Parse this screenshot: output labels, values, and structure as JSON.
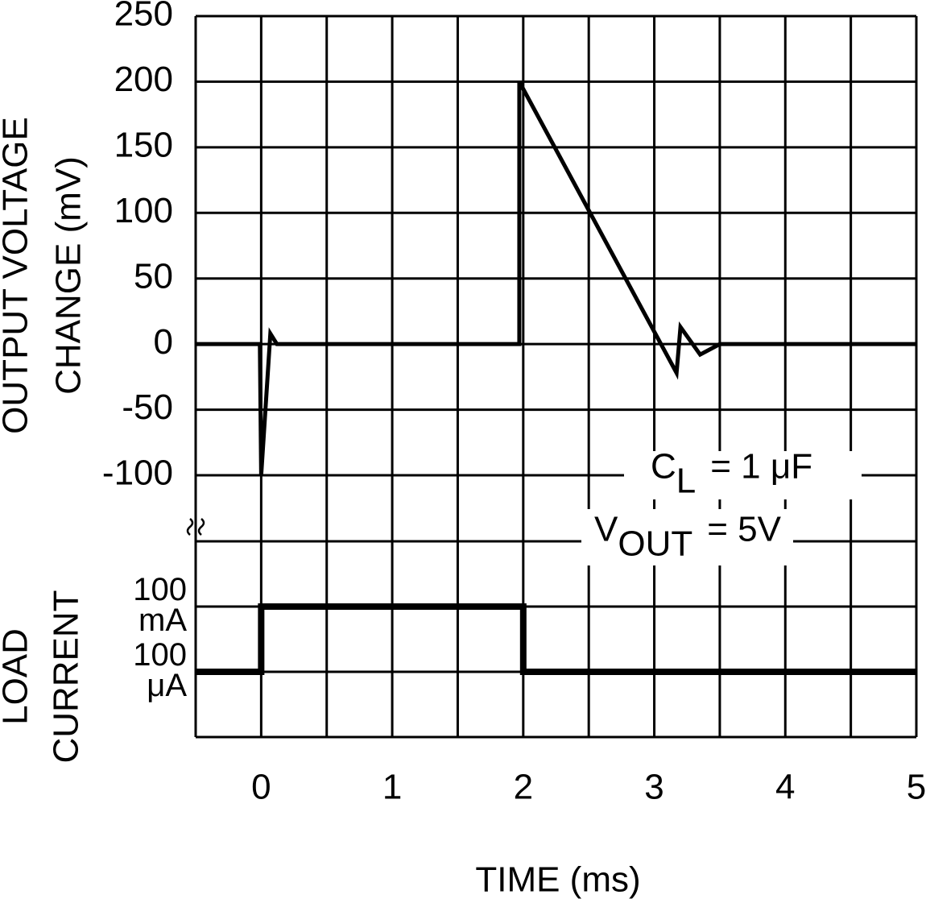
{
  "chart_data": [
    {
      "type": "line",
      "ylabel": [
        "OUTPUT VOLTAGE",
        "CHANGE (mV)"
      ],
      "xlabel": "TIME (ms)",
      "xlim": [
        -0.5,
        5
      ],
      "xticks": [
        0,
        1,
        2,
        3,
        4,
        5
      ],
      "xgrid": [
        -0.5,
        0,
        0.5,
        1,
        1.5,
        2,
        2.5,
        3,
        3.5,
        4,
        4.5,
        5
      ],
      "ylim": [
        -100,
        250
      ],
      "yticks": [
        250,
        200,
        150,
        100,
        50,
        0,
        -50,
        -100
      ],
      "grid": true,
      "series": [
        {
          "color": "#000000",
          "x": [
            -0.5,
            -0.01,
            0,
            0.07,
            0.12,
            1.97,
            1.97,
            3.17,
            3.2,
            3.35,
            3.5,
            5
          ],
          "values": [
            0,
            0,
            -100,
            8,
            0,
            0,
            200,
            -22,
            13,
            -8,
            0,
            0
          ]
        }
      ],
      "annotations": [
        {
          "main": "C",
          "sub": "L",
          "tail": "= 1 μF"
        },
        {
          "main": "V",
          "sub": "OUT",
          "tail": "= 5V"
        }
      ]
    },
    {
      "type": "line",
      "ylabel": [
        "LOAD",
        "CURRENT"
      ],
      "log_scale": true,
      "ylim": [
        0.0001,
        100000
      ],
      "yticks": [
        {
          "value": 100,
          "label": "100 mA"
        },
        {
          "value": 0.1,
          "label": "100 μA"
        }
      ],
      "grid": true,
      "series": [
        {
          "color": "#000000",
          "x": [
            -0.5,
            0,
            0,
            2,
            2,
            5
          ],
          "values": [
            0.1,
            0.1,
            100,
            100,
            0.1,
            0.1
          ]
        }
      ]
    }
  ]
}
